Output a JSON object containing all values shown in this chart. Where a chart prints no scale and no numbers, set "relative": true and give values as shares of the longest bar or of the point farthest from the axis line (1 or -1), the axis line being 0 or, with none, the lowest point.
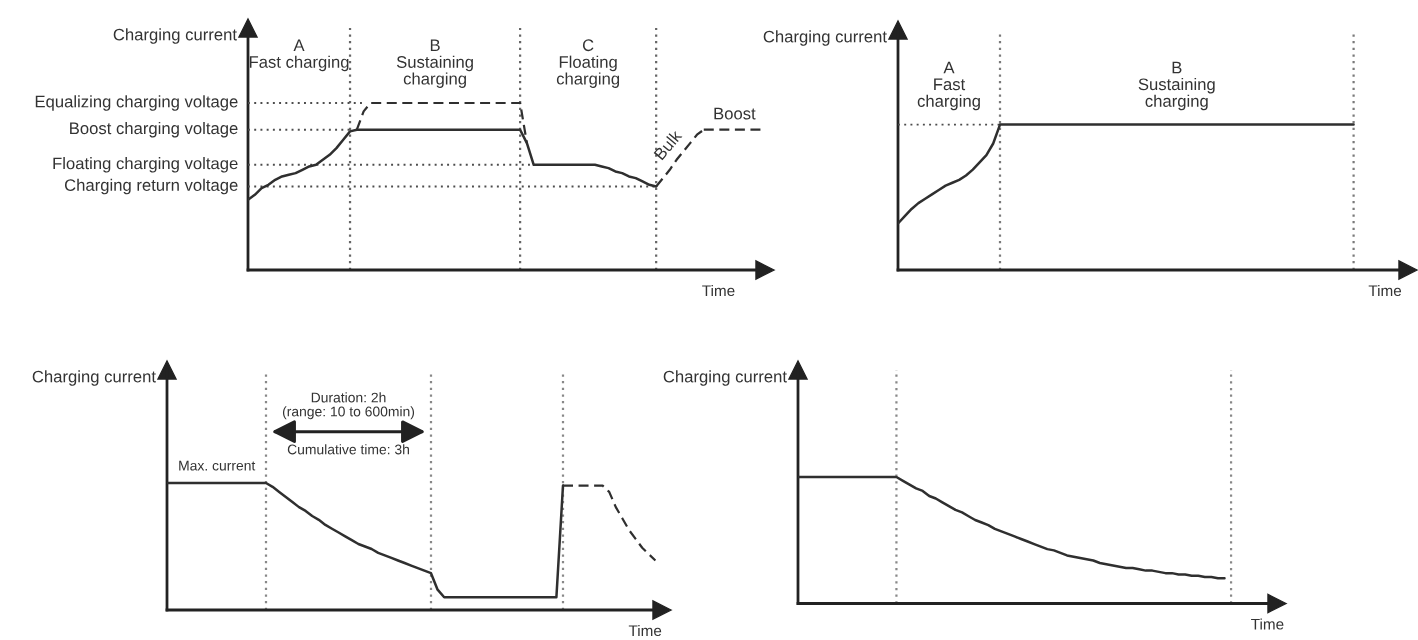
{
  "chart_data": [
    {
      "type": "line",
      "relative": true,
      "grid": "x",
      "ylabel": "Charging current",
      "xlabel": "Time",
      "categories": [
        null,
        null,
        null,
        null,
        null,
        null,
        null,
        null,
        null,
        null,
        null,
        null,
        null,
        null,
        null,
        null,
        null,
        null,
        null,
        null,
        null,
        null,
        null,
        null,
        null,
        null,
        null,
        null,
        null,
        null,
        null,
        null,
        null,
        null,
        null,
        null,
        null,
        null,
        null,
        null,
        null,
        null,
        null,
        null,
        null,
        null,
        null,
        null,
        null,
        null,
        null,
        null,
        null,
        null,
        null,
        null,
        null,
        null,
        null,
        null,
        null,
        null,
        null,
        null,
        null,
        null,
        null,
        null,
        null,
        null,
        null,
        null,
        null,
        null,
        null,
        null,
        null
      ],
      "series": [
        {
          "name": "Equalizing charging voltage",
          "color": "#4d4d4d",
          "line_style": "dotted",
          "values": [
            1,
            1,
            1,
            1,
            1,
            1,
            1,
            1,
            1,
            1,
            1,
            1,
            1,
            1,
            1,
            1,
            1,
            1,
            null,
            null,
            null,
            null,
            null,
            null,
            null,
            null,
            null,
            null,
            null,
            null,
            null,
            null,
            null,
            null,
            null,
            null,
            null,
            null,
            null,
            null,
            null,
            null,
            null,
            null,
            null,
            null,
            null,
            null,
            null,
            null,
            null,
            null,
            null,
            null,
            null,
            null,
            null,
            null,
            null,
            null,
            null,
            null,
            null,
            null,
            null,
            null,
            null,
            null,
            null,
            null,
            null,
            null,
            null,
            null,
            null,
            null,
            null
          ]
        },
        {
          "name": "Boost charging voltage",
          "color": "#4d4d4d",
          "line_style": "dotted",
          "values": [
            0.84,
            0.84,
            0.84,
            0.84,
            0.84,
            0.84,
            0.84,
            0.84,
            0.84,
            0.84,
            0.84,
            0.84,
            0.84,
            0.84,
            0.84,
            0.84,
            null,
            null,
            null,
            null,
            null,
            null,
            null,
            null,
            null,
            null,
            null,
            null,
            null,
            null,
            null,
            null,
            null,
            null,
            null,
            null,
            null,
            null,
            null,
            null,
            null,
            null,
            null,
            null,
            null,
            null,
            null,
            null,
            null,
            null,
            null,
            null,
            null,
            null,
            null,
            null,
            null,
            null,
            null,
            null,
            null,
            null,
            null,
            null,
            null,
            null,
            null,
            null,
            null,
            null,
            null,
            null,
            null,
            null,
            null,
            null,
            null
          ]
        },
        {
          "name": "Floating charging voltage",
          "color": "#4d4d4d",
          "line_style": "dotted",
          "values": [
            0.63,
            0.63,
            0.63,
            0.63,
            0.63,
            0.63,
            0.63,
            0.63,
            0.63,
            0.63,
            0.63,
            0.63,
            0.63,
            0.63,
            0.63,
            0.63,
            0.63,
            0.63,
            0.63,
            0.63,
            0.63,
            0.63,
            0.63,
            0.63,
            0.63,
            0.63,
            0.63,
            0.63,
            0.63,
            0.63,
            0.63,
            0.63,
            0.63,
            0.63,
            0.63,
            0.63,
            0.63,
            0.63,
            0.63,
            0.63,
            0.63,
            0.63,
            0.63,
            null,
            null,
            null,
            null,
            null,
            null,
            null,
            null,
            null,
            null,
            null,
            null,
            null,
            null,
            null,
            null,
            null,
            null,
            null,
            null,
            null,
            null,
            null,
            null,
            null,
            null,
            null,
            null,
            null,
            null,
            null,
            null,
            null,
            null
          ]
        },
        {
          "name": "Charging return voltage",
          "color": "#4d4d4d",
          "line_style": "dotted",
          "values": [
            0.5,
            0.5,
            0.5,
            0.5,
            0.5,
            0.5,
            0.5,
            0.5,
            0.5,
            0.5,
            0.5,
            0.5,
            0.5,
            0.5,
            0.5,
            0.5,
            0.5,
            0.5,
            0.5,
            0.5,
            0.5,
            0.5,
            0.5,
            0.5,
            0.5,
            0.5,
            0.5,
            0.5,
            0.5,
            0.5,
            0.5,
            0.5,
            0.5,
            0.5,
            0.5,
            0.5,
            0.5,
            0.5,
            0.5,
            0.5,
            0.5,
            0.5,
            0.5,
            0.5,
            0.5,
            0.5,
            0.5,
            0.5,
            0.5,
            0.5,
            0.5,
            0.5,
            0.5,
            0.5,
            0.5,
            0.5,
            0.5,
            0.5,
            0.5,
            0.5,
            0.5,
            null,
            null,
            null,
            null,
            null,
            null,
            null,
            null,
            null,
            null,
            null,
            null,
            null,
            null,
            null,
            null
          ]
        },
        {
          "color": "#2f2f2f",
          "line_style": "solid",
          "values": [
            0.42,
            0.45,
            0.49,
            0.51,
            0.54,
            0.56,
            0.57,
            0.58,
            0.6,
            0.62,
            0.63,
            0.66,
            0.69,
            0.73,
            0.78,
            0.83,
            0.84,
            0.84,
            0.84,
            0.84,
            0.84,
            0.84,
            0.84,
            0.84,
            0.84,
            0.84,
            0.84,
            0.84,
            0.84,
            0.84,
            0.84,
            0.84,
            0.84,
            0.84,
            0.84,
            0.84,
            0.84,
            0.84,
            0.84,
            0.84,
            0.84,
            0.76,
            0.63,
            0.63,
            0.63,
            0.63,
            0.63,
            0.63,
            0.63,
            0.63,
            0.63,
            0.63,
            0.62,
            0.61,
            0.59,
            0.58,
            0.56,
            0.55,
            0.53,
            0.51,
            0.5,
            null,
            null,
            null,
            null,
            null,
            null,
            null,
            null,
            null,
            null,
            null,
            null,
            null,
            null,
            null,
            null
          ]
        },
        {
          "color": "#2f2f2f",
          "line_style": "dashed",
          "values": [
            null,
            null,
            null,
            null,
            null,
            null,
            null,
            null,
            null,
            null,
            null,
            null,
            null,
            null,
            null,
            null,
            0.84,
            0.95,
            1,
            1,
            1,
            1,
            1,
            1,
            1,
            1,
            1,
            1,
            1,
            1,
            1,
            1,
            1,
            1,
            1,
            1,
            1,
            1,
            1,
            1,
            1,
            0.76,
            null,
            null,
            null,
            null,
            null,
            null,
            null,
            null,
            null,
            null,
            null,
            null,
            null,
            null,
            null,
            null,
            null,
            null,
            null,
            null,
            null,
            null,
            null,
            null,
            null,
            null,
            null,
            null,
            null,
            null,
            null,
            null,
            null,
            null,
            null
          ]
        },
        {
          "name": "Bulk",
          "color": "#2f2f2f",
          "line_style": "dashed",
          "values": [
            null,
            null,
            null,
            null,
            null,
            null,
            null,
            null,
            null,
            null,
            null,
            null,
            null,
            null,
            null,
            null,
            null,
            null,
            null,
            null,
            null,
            null,
            null,
            null,
            null,
            null,
            null,
            null,
            null,
            null,
            null,
            null,
            null,
            null,
            null,
            null,
            null,
            null,
            null,
            null,
            null,
            null,
            null,
            null,
            null,
            null,
            null,
            null,
            null,
            null,
            null,
            null,
            null,
            null,
            null,
            null,
            null,
            null,
            null,
            null,
            0.5,
            0.55,
            0.6,
            0.66,
            0.71,
            0.76,
            0.81,
            0.84,
            null,
            null,
            null,
            null,
            null,
            null,
            null,
            null,
            null
          ]
        },
        {
          "name": "Boost",
          "color": "#2f2f2f",
          "line_style": "dashed",
          "values": [
            null,
            null,
            null,
            null,
            null,
            null,
            null,
            null,
            null,
            null,
            null,
            null,
            null,
            null,
            null,
            null,
            null,
            null,
            null,
            null,
            null,
            null,
            null,
            null,
            null,
            null,
            null,
            null,
            null,
            null,
            null,
            null,
            null,
            null,
            null,
            null,
            null,
            null,
            null,
            null,
            null,
            null,
            null,
            null,
            null,
            null,
            null,
            null,
            null,
            null,
            null,
            null,
            null,
            null,
            null,
            null,
            null,
            null,
            null,
            null,
            null,
            null,
            null,
            null,
            null,
            null,
            null,
            0.84,
            0.84,
            0.84,
            0.84,
            0.84,
            0.84,
            0.84,
            0.84,
            0.84,
            0.84
          ]
        }
      ],
      "annotations": [
        "A\nFast charging",
        "B\nSustaining\ncharging",
        "C\nFloating\ncharging"
      ]
    },
    {
      "type": "line",
      "relative": true,
      "ylabel": "Charging current",
      "xlabel": "Time",
      "categories": [
        null,
        null,
        null,
        null,
        null,
        null,
        null,
        null,
        null,
        null,
        null,
        null,
        null,
        null,
        null,
        null,
        null,
        null,
        null,
        null,
        null,
        null,
        null,
        null,
        null,
        null,
        null,
        null,
        null,
        null,
        null,
        null,
        null,
        null,
        null,
        null,
        null,
        null,
        null,
        null,
        null,
        null,
        null,
        null,
        null,
        null,
        null,
        null,
        null,
        null,
        null,
        null,
        null,
        null,
        null,
        null,
        null,
        null,
        null,
        null,
        null,
        null,
        null,
        null,
        null,
        null,
        null,
        null,
        null,
        null,
        null,
        null,
        null,
        null,
        null,
        null
      ],
      "series": [
        {
          "color": "#4d4d4d",
          "line_style": "dotted",
          "values": [
            1,
            1,
            1,
            1,
            1,
            1,
            1,
            1,
            1,
            1,
            1,
            1,
            1,
            1,
            1,
            1,
            null,
            null,
            null,
            null,
            null,
            null,
            null,
            null,
            null,
            null,
            null,
            null,
            null,
            null,
            null,
            null,
            null,
            null,
            null,
            null,
            null,
            null,
            null,
            null,
            null,
            null,
            null,
            null,
            null,
            null,
            null,
            null,
            null,
            null,
            null,
            null,
            null,
            null,
            null,
            null,
            null,
            null,
            null,
            null,
            null,
            null,
            null,
            null,
            null,
            null,
            null,
            null,
            null,
            null,
            null,
            null,
            null,
            null,
            null,
            null
          ]
        },
        {
          "color": "#2f2f2f",
          "line_style": "solid",
          "values": [
            0.32,
            0.37,
            0.42,
            0.46,
            0.49,
            0.52,
            0.55,
            0.58,
            0.6,
            0.62,
            0.65,
            0.69,
            0.74,
            0.79,
            0.87,
            1,
            1,
            1,
            1,
            1,
            1,
            1,
            1,
            1,
            1,
            1,
            1,
            1,
            1,
            1,
            1,
            1,
            1,
            1,
            1,
            1,
            1,
            1,
            1,
            1,
            1,
            1,
            1,
            1,
            1,
            1,
            1,
            1,
            1,
            1,
            1,
            1,
            1,
            1,
            1,
            1,
            1,
            1,
            1,
            1,
            1,
            1,
            1,
            1,
            1,
            1,
            1,
            1,
            null,
            null,
            null,
            null,
            null,
            null,
            null,
            null
          ]
        }
      ],
      "annotations": [
        "A\nFast\ncharging",
        "B\nSustaining\ncharging"
      ]
    },
    {
      "type": "line",
      "relative": true,
      "grid": "x",
      "ylabel": "Charging current",
      "xlabel": "Time",
      "categories": [
        null,
        null,
        null,
        null,
        null,
        null,
        null,
        null,
        null,
        null,
        null,
        null,
        null,
        null,
        null,
        null,
        null,
        null,
        null,
        null,
        null,
        null,
        null,
        null,
        null,
        null,
        null,
        null,
        null,
        null,
        null,
        null,
        null,
        null,
        null,
        null,
        null,
        null,
        null,
        null,
        null,
        null,
        null,
        null,
        null,
        null,
        null,
        null,
        null,
        null,
        null,
        null,
        null,
        null,
        null,
        null,
        null,
        null,
        null,
        null,
        null,
        null,
        null,
        null,
        null,
        null,
        null,
        null,
        null,
        null,
        null,
        null,
        null,
        null,
        null,
        null
      ],
      "series": [
        {
          "color": "#2f2f2f",
          "line_style": "solid",
          "values": [
            1,
            1,
            1,
            1,
            1,
            1,
            1,
            1,
            1,
            1,
            1,
            1,
            1,
            1,
            1,
            1,
            0.97,
            0.93,
            0.89,
            0.85,
            0.81,
            0.78,
            0.74,
            0.71,
            0.67,
            0.64,
            0.61,
            0.58,
            0.55,
            0.52,
            0.5,
            0.48,
            0.45,
            0.43,
            0.41,
            0.39,
            0.37,
            0.35,
            0.33,
            0.31,
            0.29,
            0.16,
            0.1,
            0.1,
            0.1,
            0.1,
            0.1,
            0.1,
            0.1,
            0.1,
            0.1,
            0.1,
            0.1,
            0.1,
            0.1,
            0.1,
            0.1,
            0.1,
            0.1,
            0.1,
            0.98,
            null,
            null,
            null,
            null,
            null,
            null,
            null,
            null,
            null,
            null,
            null,
            null,
            null,
            null,
            null
          ]
        },
        {
          "color": "#2f2f2f",
          "line_style": "dashed",
          "values": [
            null,
            null,
            null,
            null,
            null,
            null,
            null,
            null,
            null,
            null,
            null,
            null,
            null,
            null,
            null,
            null,
            null,
            null,
            null,
            null,
            null,
            null,
            null,
            null,
            null,
            null,
            null,
            null,
            null,
            null,
            null,
            null,
            null,
            null,
            null,
            null,
            null,
            null,
            null,
            null,
            null,
            null,
            null,
            null,
            null,
            null,
            null,
            null,
            null,
            null,
            null,
            null,
            null,
            null,
            null,
            null,
            null,
            null,
            null,
            null,
            0.98,
            0.98,
            0.98,
            0.98,
            0.98,
            0.98,
            0.98,
            0.93,
            0.81,
            0.72,
            0.63,
            0.56,
            0.49,
            0.44,
            0.39,
            null
          ]
        }
      ],
      "annotations": [
        {
          "text": "Max. current",
          "y": 1
        },
        "Duration: 2h\n(range: 10 to 600min)",
        "Cumulative time: 3h"
      ]
    },
    {
      "type": "line",
      "relative": true,
      "ylabel": "Charging current",
      "xlabel": "Time",
      "categories": [
        null,
        null,
        null,
        null,
        null,
        null,
        null,
        null,
        null,
        null,
        null,
        null,
        null,
        null,
        null,
        null,
        null,
        null,
        null,
        null,
        null,
        null,
        null,
        null,
        null,
        null,
        null,
        null,
        null,
        null,
        null,
        null,
        null,
        null,
        null,
        null,
        null,
        null,
        null,
        null,
        null,
        null,
        null,
        null,
        null,
        null,
        null,
        null,
        null,
        null,
        null,
        null,
        null,
        null,
        null,
        null,
        null,
        null,
        null,
        null,
        null,
        null,
        null,
        null,
        null,
        null,
        null,
        null,
        null,
        null,
        null,
        null,
        null,
        null
      ],
      "series": [
        {
          "color": "#2f2f2f",
          "line_style": "solid",
          "values": [
            1,
            1,
            1,
            1,
            1,
            1,
            1,
            1,
            1,
            1,
            1,
            1,
            1,
            1,
            1,
            1,
            0.97,
            0.94,
            0.91,
            0.89,
            0.85,
            0.83,
            0.8,
            0.77,
            0.74,
            0.72,
            0.69,
            0.66,
            0.64,
            0.62,
            0.59,
            0.57,
            0.55,
            0.53,
            0.51,
            0.49,
            0.47,
            0.45,
            0.43,
            0.42,
            0.4,
            0.38,
            0.37,
            0.36,
            0.35,
            0.34,
            0.32,
            0.31,
            0.3,
            0.29,
            0.28,
            0.28,
            0.27,
            0.26,
            0.26,
            0.25,
            0.24,
            0.24,
            0.23,
            0.23,
            0.22,
            0.22,
            0.21,
            0.21,
            0.2,
            0.2,
            null,
            null,
            null,
            null,
            null,
            null,
            null,
            null
          ]
        }
      ]
    }
  ]
}
